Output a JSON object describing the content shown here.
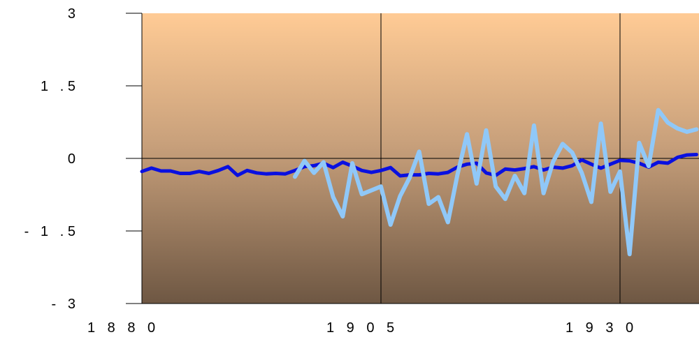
{
  "chart_data": {
    "type": "line",
    "title": "",
    "xlabel": "",
    "ylabel": "",
    "xlim": [
      1880,
      1938
    ],
    "ylim": [
      -3,
      3
    ],
    "x_ticks": [
      {
        "value": 1880,
        "label": "1 8 8 0"
      },
      {
        "value": 1905,
        "label": "1 9 0 5"
      },
      {
        "value": 1930,
        "label": "1 9 3 0"
      }
    ],
    "y_ticks": [
      {
        "value": 3,
        "label": "3"
      },
      {
        "value": 1.5,
        "label": "1   . 5"
      },
      {
        "value": 0,
        "label": "0"
      },
      {
        "value": -1.5,
        "label": "-   1   . 5"
      },
      {
        "value": -3,
        "label": "-   3"
      }
    ],
    "grid": {
      "vertical": true,
      "horizontal": false
    },
    "series": [
      {
        "name": "",
        "color": "#0a10e0",
        "x": [
          1880,
          1881,
          1882,
          1883,
          1884,
          1885,
          1886,
          1887,
          1888,
          1889,
          1890,
          1891,
          1892,
          1893,
          1894,
          1895,
          1896,
          1897,
          1898,
          1899,
          1900,
          1901,
          1902,
          1903,
          1904,
          1905,
          1906,
          1907,
          1908,
          1909,
          1910,
          1911,
          1912,
          1913,
          1914,
          1915,
          1916,
          1917,
          1918,
          1919,
          1920,
          1921,
          1922,
          1923,
          1924,
          1925,
          1926,
          1927,
          1928,
          1929,
          1930,
          1931,
          1932,
          1933,
          1934,
          1935,
          1936,
          1937,
          1938
        ],
        "values": [
          -0.27,
          -0.2,
          -0.26,
          -0.26,
          -0.31,
          -0.31,
          -0.27,
          -0.31,
          -0.25,
          -0.17,
          -0.35,
          -0.25,
          -0.3,
          -0.32,
          -0.31,
          -0.32,
          -0.25,
          -0.17,
          -0.15,
          -0.1,
          -0.19,
          -0.08,
          -0.16,
          -0.25,
          -0.29,
          -0.25,
          -0.19,
          -0.36,
          -0.34,
          -0.34,
          -0.31,
          -0.32,
          -0.29,
          -0.18,
          -0.12,
          -0.1,
          -0.3,
          -0.35,
          -0.22,
          -0.24,
          -0.21,
          -0.17,
          -0.24,
          -0.18,
          -0.2,
          -0.15,
          -0.03,
          -0.12,
          -0.2,
          -0.12,
          -0.04,
          -0.05,
          -0.1,
          -0.18,
          -0.08,
          -0.1,
          0.02,
          0.07,
          0.08
        ]
      },
      {
        "name": "",
        "color": "#90c8f8",
        "x": [
          1896,
          1897,
          1898,
          1899,
          1900,
          1901,
          1902,
          1903,
          1904,
          1905,
          1906,
          1907,
          1908,
          1909,
          1910,
          1911,
          1912,
          1913,
          1914,
          1915,
          1916,
          1917,
          1918,
          1919,
          1920,
          1921,
          1922,
          1923,
          1924,
          1925,
          1926,
          1927,
          1928,
          1929,
          1930,
          1931,
          1932,
          1933,
          1934,
          1935,
          1936,
          1937,
          1938
        ],
        "values": [
          -0.38,
          -0.05,
          -0.3,
          -0.08,
          -0.8,
          -1.2,
          -0.1,
          -0.74,
          -0.66,
          -0.58,
          -1.37,
          -0.78,
          -0.4,
          0.14,
          -0.94,
          -0.8,
          -1.32,
          -0.34,
          0.5,
          -0.52,
          0.58,
          -0.58,
          -0.84,
          -0.36,
          -0.72,
          0.68,
          -0.72,
          -0.07,
          0.3,
          0.12,
          -0.3,
          -0.9,
          0.72,
          -0.69,
          -0.27,
          -1.98,
          0.32,
          -0.16,
          1.0,
          0.74,
          0.62,
          0.55,
          0.6
        ]
      }
    ]
  }
}
